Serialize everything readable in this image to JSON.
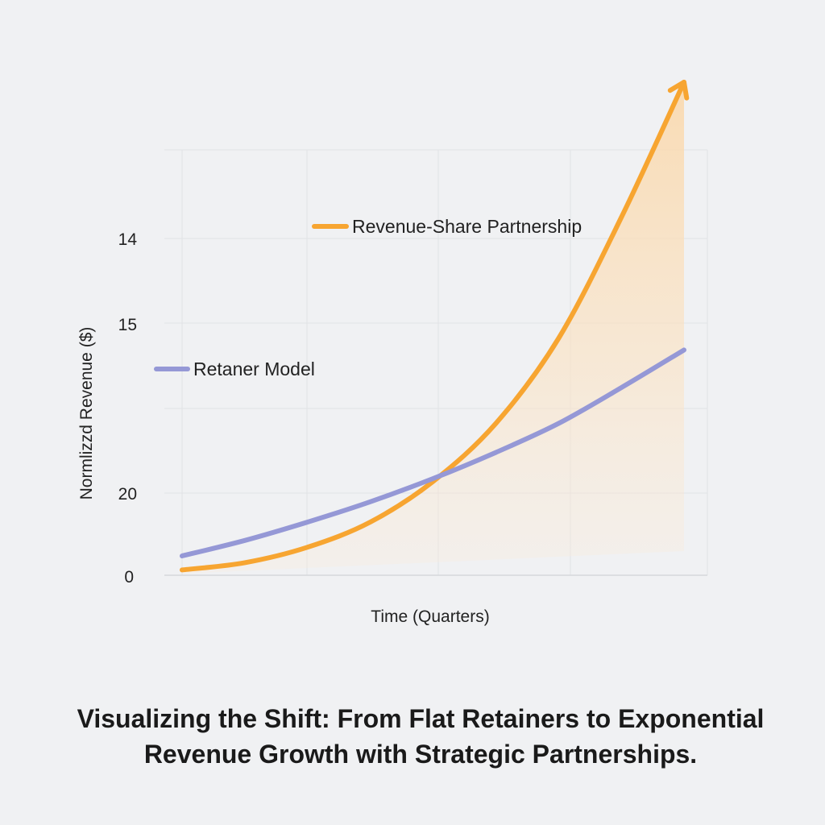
{
  "chart_data": {
    "type": "line",
    "title": "",
    "xlabel": "Time (Quarters)",
    "ylabel": "Normlizzd Revenue ($)",
    "y_tick_labels": [
      "14",
      "15",
      "20",
      "0"
    ],
    "grid": true,
    "legend": "inline",
    "series": [
      {
        "name": "Revenue-Share Partnership",
        "color": "#f7a531",
        "fill": true,
        "x": [
          0,
          0.5,
          1,
          1.5,
          2,
          2.5,
          3,
          3.5,
          4
        ],
        "y": [
          0.55,
          1.3,
          2.9,
          5.5,
          9.7,
          15.7,
          24.5,
          37.0,
          51.0
        ]
      },
      {
        "name": "Retaner Model",
        "color": "#9598d6",
        "fill": false,
        "x": [
          0,
          0.5,
          1,
          1.5,
          2,
          2.5,
          3,
          3.5,
          4
        ],
        "y": [
          2.0,
          3.6,
          5.5,
          7.6,
          10.0,
          12.7,
          15.7,
          19.4,
          23.3
        ]
      }
    ]
  },
  "caption": {
    "line1": "Visualizing the Shift: From Flat Retainers to Exponential",
    "line2": "Revenue Growth with Strategic Partnerships."
  }
}
